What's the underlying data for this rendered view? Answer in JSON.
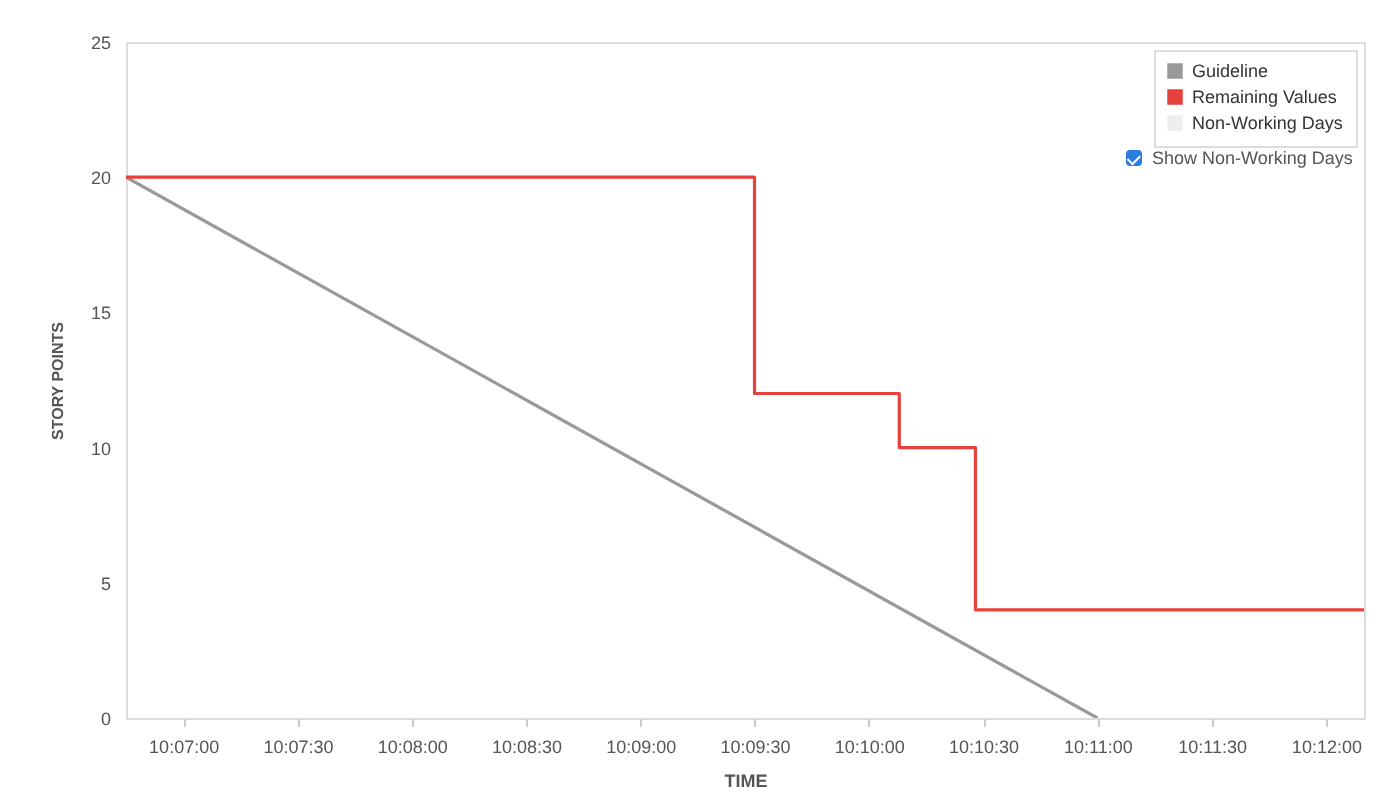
{
  "chart_data": {
    "type": "line",
    "xlabel": "TIME",
    "ylabel": "STORY POINTS",
    "series": [
      {
        "name": "Guideline",
        "color": "#999999",
        "x": [
          10.1125,
          10.183333
        ],
        "values": [
          20,
          0
        ]
      },
      {
        "name": "Remaining Values",
        "type": "step",
        "color": "#e8403a",
        "x": [
          10.1125,
          10.158333,
          10.168889,
          10.174444,
          10.202778
        ],
        "values": [
          20,
          12,
          10,
          4,
          4
        ]
      },
      {
        "name": "Non-Working Days",
        "type": "area",
        "color": "#eeeeee"
      }
    ],
    "xlim": [
      10.1125,
      10.202778
    ],
    "xticks": [
      {
        "value": 10.116667,
        "label": "10:07:00"
      },
      {
        "value": 10.125,
        "label": "10:07:30"
      },
      {
        "value": 10.133333,
        "label": "10:08:00"
      },
      {
        "value": 10.141667,
        "label": "10:08:30"
      },
      {
        "value": 10.15,
        "label": "10:09:00"
      },
      {
        "value": 10.158333,
        "label": "10:09:30"
      },
      {
        "value": 10.166667,
        "label": "10:10:00"
      },
      {
        "value": 10.175,
        "label": "10:10:30"
      },
      {
        "value": 10.183333,
        "label": "10:11:00"
      },
      {
        "value": 10.191667,
        "label": "10:11:30"
      },
      {
        "value": 10.2,
        "label": "10:12:00"
      }
    ],
    "ylim": [
      0,
      25
    ],
    "yticks": [
      0,
      5,
      10,
      15,
      20,
      25
    ],
    "legend": "top right",
    "annotations": [
      "Show Non-Working Days"
    ]
  }
}
